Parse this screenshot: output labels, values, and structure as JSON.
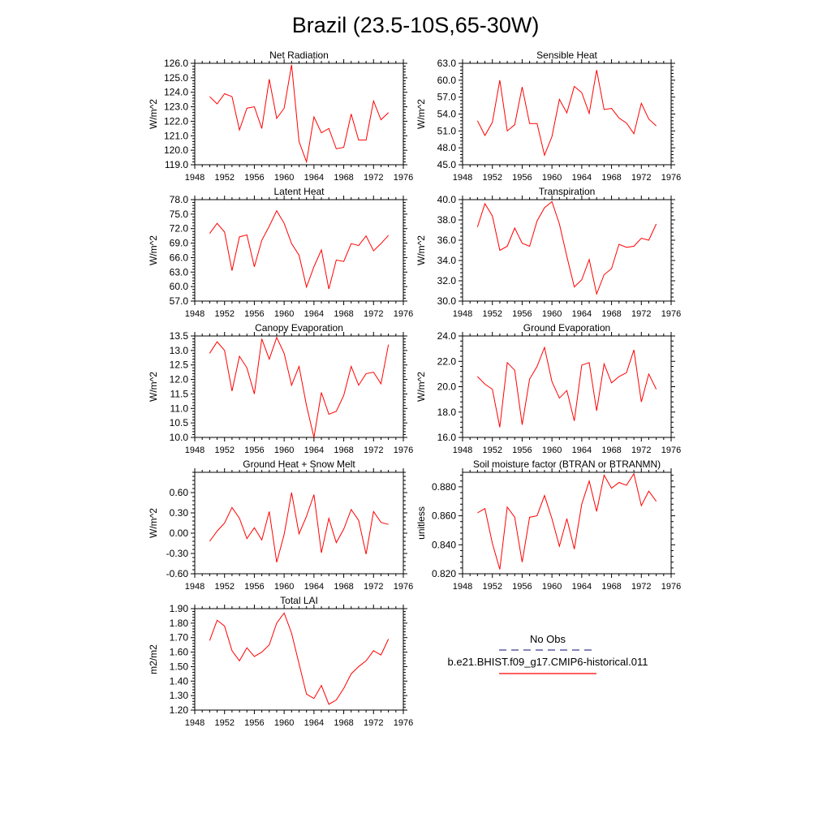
{
  "figure": {
    "title": "Brazil (23.5-10S,65-30W)"
  },
  "legend": {
    "entries": [
      {
        "label": "No Obs",
        "color": "#3b3f8f",
        "style": "dashed"
      },
      {
        "label": "b.e21.BHIST.f09_g17.CMIP6-historical.011",
        "color": "#ff0000",
        "style": "solid"
      }
    ]
  },
  "chart_data": [
    {
      "type": "line",
      "title": "Net Radiation",
      "ylabel": "W/m^2",
      "xlim": [
        1948,
        1976
      ],
      "ylim": [
        119.0,
        126.0
      ],
      "xticks": [
        "1948",
        "1952",
        "1956",
        "1960",
        "1964",
        "1968",
        "1972",
        "1976"
      ],
      "yticks": [
        "119.0",
        "120.0",
        "121.0",
        "122.0",
        "123.0",
        "124.0",
        "125.0",
        "126.0"
      ],
      "series": [
        {
          "color": "#ff0000",
          "x": [
            1950,
            1951,
            1952,
            1953,
            1954,
            1955,
            1956,
            1957,
            1958,
            1959,
            1960,
            1961,
            1962,
            1963,
            1964,
            1965,
            1966,
            1967,
            1968,
            1969,
            1970,
            1971,
            1972,
            1973,
            1974
          ],
          "y": [
            123.7,
            123.2,
            123.9,
            123.7,
            121.4,
            122.9,
            123.0,
            121.5,
            124.9,
            122.2,
            122.9,
            125.9,
            120.6,
            119.2,
            122.3,
            121.2,
            121.5,
            120.1,
            120.2,
            122.5,
            120.7,
            120.7,
            123.4,
            122.1,
            122.6
          ]
        }
      ]
    },
    {
      "type": "line",
      "title": "Sensible Heat",
      "ylabel": "W/m^2",
      "xlim": [
        1948,
        1976
      ],
      "ylim": [
        45.0,
        63.0
      ],
      "xticks": [
        "1948",
        "1952",
        "1956",
        "1960",
        "1964",
        "1968",
        "1972",
        "1976"
      ],
      "yticks": [
        "45.0",
        "48.0",
        "51.0",
        "54.0",
        "57.0",
        "60.0",
        "63.0"
      ],
      "series": [
        {
          "color": "#ff0000",
          "x": [
            1950,
            1951,
            1952,
            1953,
            1954,
            1955,
            1956,
            1957,
            1958,
            1959,
            1960,
            1961,
            1962,
            1963,
            1964,
            1965,
            1966,
            1967,
            1968,
            1969,
            1970,
            1971,
            1972,
            1973,
            1974
          ],
          "y": [
            52.8,
            50.2,
            52.5,
            60.0,
            51.0,
            52.1,
            58.8,
            52.3,
            52.3,
            46.7,
            50.0,
            56.6,
            54.2,
            58.9,
            57.8,
            54.1,
            61.8,
            54.8,
            55.0,
            53.3,
            52.4,
            50.5,
            55.9,
            53.1,
            51.9
          ]
        }
      ]
    },
    {
      "type": "line",
      "title": "Latent Heat",
      "ylabel": "W/m^2",
      "xlim": [
        1948,
        1976
      ],
      "ylim": [
        57.0,
        78.0
      ],
      "xticks": [
        "1948",
        "1952",
        "1956",
        "1960",
        "1964",
        "1968",
        "1972",
        "1976"
      ],
      "yticks": [
        "57.0",
        "60.0",
        "63.0",
        "66.0",
        "69.0",
        "72.0",
        "75.0",
        "78.0"
      ],
      "series": [
        {
          "color": "#ff0000",
          "x": [
            1950,
            1951,
            1952,
            1953,
            1954,
            1955,
            1956,
            1957,
            1958,
            1959,
            1960,
            1961,
            1962,
            1963,
            1964,
            1965,
            1966,
            1967,
            1968,
            1969,
            1970,
            1971,
            1972,
            1973,
            1974
          ],
          "y": [
            71.0,
            73.1,
            71.3,
            63.3,
            70.3,
            70.7,
            64.1,
            69.6,
            72.5,
            75.7,
            73.1,
            68.9,
            66.5,
            59.9,
            64.1,
            67.6,
            59.5,
            65.5,
            65.2,
            68.9,
            68.5,
            70.5,
            67.4,
            68.9,
            70.6
          ]
        }
      ]
    },
    {
      "type": "line",
      "title": "Transpiration",
      "ylabel": "W/m^2",
      "xlim": [
        1948,
        1976
      ],
      "ylim": [
        30.0,
        40.0
      ],
      "xticks": [
        "1948",
        "1952",
        "1956",
        "1960",
        "1964",
        "1968",
        "1972",
        "1976"
      ],
      "yticks": [
        "30.0",
        "32.0",
        "34.0",
        "36.0",
        "38.0",
        "40.0"
      ],
      "series": [
        {
          "color": "#ff0000",
          "x": [
            1950,
            1951,
            1952,
            1953,
            1954,
            1955,
            1956,
            1957,
            1958,
            1959,
            1960,
            1961,
            1962,
            1963,
            1964,
            1965,
            1966,
            1967,
            1968,
            1969,
            1970,
            1971,
            1972,
            1973,
            1974
          ],
          "y": [
            37.3,
            39.6,
            38.4,
            35.0,
            35.4,
            37.2,
            35.7,
            35.4,
            37.9,
            39.2,
            39.8,
            37.6,
            34.4,
            31.4,
            32.1,
            34.1,
            30.7,
            32.6,
            33.2,
            35.6,
            35.3,
            35.4,
            36.2,
            36.0,
            37.6
          ]
        }
      ]
    },
    {
      "type": "line",
      "title": "Canopy Evaporation",
      "ylabel": "W/m^2",
      "xlim": [
        1948,
        1976
      ],
      "ylim": [
        10.0,
        13.5
      ],
      "xticks": [
        "1948",
        "1952",
        "1956",
        "1960",
        "1964",
        "1968",
        "1972",
        "1976"
      ],
      "yticks": [
        "10.0",
        "10.5",
        "11.0",
        "11.5",
        "12.0",
        "12.5",
        "13.0",
        "13.5"
      ],
      "series": [
        {
          "color": "#ff0000",
          "x": [
            1950,
            1951,
            1952,
            1953,
            1954,
            1955,
            1956,
            1957,
            1958,
            1959,
            1960,
            1961,
            1962,
            1963,
            1964,
            1965,
            1966,
            1967,
            1968,
            1969,
            1970,
            1971,
            1972,
            1973,
            1974
          ],
          "y": [
            12.9,
            13.3,
            13.0,
            11.6,
            12.8,
            12.4,
            11.5,
            13.4,
            12.7,
            13.45,
            12.9,
            11.8,
            12.45,
            11.1,
            10.0,
            11.55,
            10.8,
            10.9,
            11.45,
            12.45,
            11.8,
            12.2,
            12.25,
            11.85,
            13.2
          ]
        }
      ]
    },
    {
      "type": "line",
      "title": "Ground Evaporation",
      "ylabel": "W/m^2",
      "xlim": [
        1948,
        1976
      ],
      "ylim": [
        16.0,
        24.0
      ],
      "xticks": [
        "1948",
        "1952",
        "1956",
        "1960",
        "1964",
        "1968",
        "1972",
        "1976"
      ],
      "yticks": [
        "16.0",
        "18.0",
        "20.0",
        "22.0",
        "24.0"
      ],
      "series": [
        {
          "color": "#ff0000",
          "x": [
            1950,
            1951,
            1952,
            1953,
            1954,
            1955,
            1956,
            1957,
            1958,
            1959,
            1960,
            1961,
            1962,
            1963,
            1964,
            1965,
            1966,
            1967,
            1968,
            1969,
            1970,
            1971,
            1972,
            1973,
            1974
          ],
          "y": [
            20.8,
            20.2,
            19.8,
            16.8,
            21.9,
            21.3,
            17.0,
            20.6,
            21.6,
            23.1,
            20.4,
            19.1,
            19.7,
            17.3,
            21.7,
            21.9,
            18.1,
            21.8,
            20.3,
            20.8,
            21.1,
            22.9,
            18.8,
            21.0,
            19.8
          ]
        }
      ]
    },
    {
      "type": "line",
      "title": "Ground Heat + Snow Melt",
      "ylabel": "W/m^2",
      "xlim": [
        1948,
        1976
      ],
      "ylim": [
        -0.6,
        0.9
      ],
      "xticks": [
        "1948",
        "1952",
        "1956",
        "1960",
        "1964",
        "1968",
        "1972",
        "1976"
      ],
      "yticks": [
        "-0.60",
        "-0.30",
        "0.00",
        "0.30",
        "0.60"
      ],
      "series": [
        {
          "color": "#ff0000",
          "x": [
            1950,
            1951,
            1952,
            1953,
            1954,
            1955,
            1956,
            1957,
            1958,
            1959,
            1960,
            1961,
            1962,
            1963,
            1964,
            1965,
            1966,
            1967,
            1968,
            1969,
            1970,
            1971,
            1972,
            1973,
            1974
          ],
          "y": [
            -0.12,
            0.03,
            0.15,
            0.38,
            0.22,
            -0.08,
            0.08,
            -0.1,
            0.32,
            -0.43,
            -0.02,
            0.6,
            -0.01,
            0.25,
            0.57,
            -0.29,
            0.22,
            -0.14,
            0.06,
            0.35,
            0.19,
            -0.31,
            0.32,
            0.16,
            0.13
          ]
        }
      ]
    },
    {
      "type": "line",
      "title": "Soil moisture factor (BTRAN or BTRANMN)",
      "ylabel": "unitless",
      "xlim": [
        1948,
        1976
      ],
      "ylim": [
        0.82,
        0.89
      ],
      "xticks": [
        "1948",
        "1952",
        "1956",
        "1960",
        "1964",
        "1968",
        "1972",
        "1976"
      ],
      "yticks": [
        "0.820",
        "0.840",
        "0.860",
        "0.880"
      ],
      "series": [
        {
          "color": "#ff0000",
          "x": [
            1950,
            1951,
            1952,
            1953,
            1954,
            1955,
            1956,
            1957,
            1958,
            1959,
            1960,
            1961,
            1962,
            1963,
            1964,
            1965,
            1966,
            1967,
            1968,
            1969,
            1970,
            1971,
            1972,
            1973,
            1974
          ],
          "y": [
            0.862,
            0.865,
            0.841,
            0.823,
            0.866,
            0.859,
            0.828,
            0.859,
            0.86,
            0.874,
            0.858,
            0.839,
            0.858,
            0.837,
            0.868,
            0.884,
            0.863,
            0.888,
            0.879,
            0.883,
            0.881,
            0.889,
            0.867,
            0.877,
            0.87
          ]
        }
      ]
    },
    {
      "type": "line",
      "title": "Total LAI",
      "ylabel": "m2/m2",
      "xlim": [
        1948,
        1976
      ],
      "ylim": [
        1.2,
        1.9
      ],
      "xticks": [
        "1948",
        "1952",
        "1956",
        "1960",
        "1964",
        "1968",
        "1972",
        "1976"
      ],
      "yticks": [
        "1.20",
        "1.30",
        "1.40",
        "1.50",
        "1.60",
        "1.70",
        "1.80",
        "1.90"
      ],
      "series": [
        {
          "color": "#ff0000",
          "x": [
            1950,
            1951,
            1952,
            1953,
            1954,
            1955,
            1956,
            1957,
            1958,
            1959,
            1960,
            1961,
            1962,
            1963,
            1964,
            1965,
            1966,
            1967,
            1968,
            1969,
            1970,
            1971,
            1972,
            1973,
            1974
          ],
          "y": [
            1.68,
            1.82,
            1.78,
            1.61,
            1.54,
            1.63,
            1.57,
            1.6,
            1.65,
            1.8,
            1.87,
            1.73,
            1.52,
            1.31,
            1.28,
            1.37,
            1.24,
            1.27,
            1.35,
            1.45,
            1.5,
            1.54,
            1.61,
            1.58,
            1.69
          ]
        }
      ]
    }
  ]
}
